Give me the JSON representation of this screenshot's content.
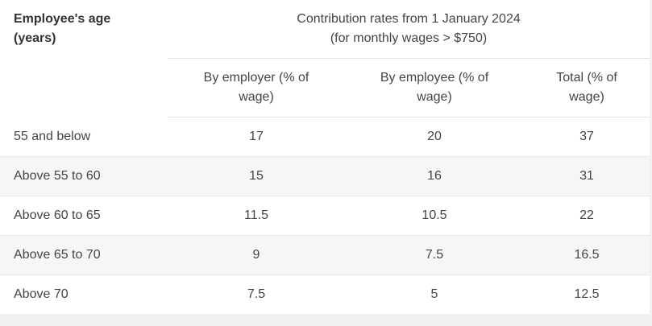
{
  "table": {
    "age_header_line1": "Employee's age",
    "age_header_line2": "(years)",
    "group_header_line1": "Contribution rates from 1 January 2024",
    "group_header_line2": "(for monthly wages > $750)",
    "col_employer": "By employer (% of wage)",
    "col_employee": "By employee (% of wage)",
    "col_total": "Total (% of wage)",
    "rows": [
      {
        "age": "55 and below",
        "employer": "17",
        "employee": "20",
        "total": "37"
      },
      {
        "age": "Above 55 to 60",
        "employer": "15",
        "employee": "16",
        "total": "31"
      },
      {
        "age": "Above 60 to 65",
        "employer": "11.5",
        "employee": "10.5",
        "total": "22"
      },
      {
        "age": "Above 65 to 70",
        "employer": "9",
        "employee": "7.5",
        "total": "16.5"
      },
      {
        "age": "Above 70",
        "employer": "7.5",
        "employee": "5",
        "total": "12.5"
      }
    ]
  },
  "colors": {
    "row_shade": "#f6f6f6",
    "border": "#e3e3e3",
    "text": "#444444"
  }
}
